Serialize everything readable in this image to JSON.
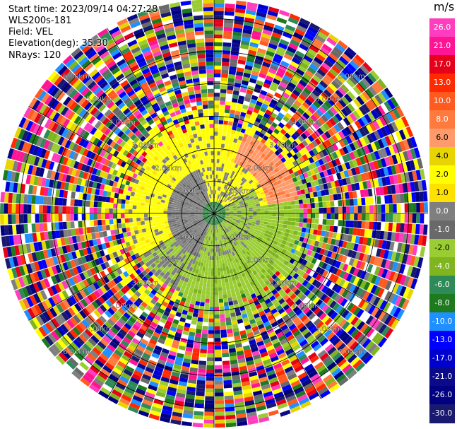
{
  "header": {
    "start_time": "Start time: 2023/09/14 04:27:28",
    "instrument": "WLS200s-181",
    "field": "Field: VEL",
    "elevation": "Elevation(deg): 35.30",
    "nrays": "NRays: 120"
  },
  "chart_data": {
    "type": "ppi_polar_heatmap",
    "field": "VEL",
    "unit": "m/s",
    "n_rays": 120,
    "elevation_deg": 35.3,
    "range_ring_labels": [
      "1.00km",
      "2.00km",
      "3.00km",
      "4.00km",
      "5.00km",
      "6.00km"
    ],
    "range_ring_km": [
      1,
      2,
      3,
      4,
      5,
      6
    ],
    "max_range_km": 6.6,
    "colorbar": {
      "title": "m/s",
      "ticks": [
        "26.0",
        "21.0",
        "17.0",
        "13.0",
        "10.0",
        "8.0",
        "6.0",
        "4.0",
        "2.0",
        "1.0",
        "0.0",
        "-1.0",
        "-2.0",
        "-4.0",
        "-6.0",
        "-8.0",
        "-10.0",
        "-13.0",
        "-17.0",
        "-21.0",
        "-26.0",
        "-30.0"
      ],
      "colors": [
        "#ff3dbe",
        "#ff1493",
        "#e6001a",
        "#ff2a00",
        "#ff5a1f",
        "#ff7a3d",
        "#ff9a6a",
        "#e8d400",
        "#ffff00",
        "#ffe100",
        "#7f7f7f",
        "#696969",
        "#9acd32",
        "#7fb51e",
        "#2e8b57",
        "#1e7a1e",
        "#1e90ff",
        "#0000ff",
        "#0000cd",
        "#0a0a8a",
        "#000080",
        "#191970"
      ]
    }
  }
}
